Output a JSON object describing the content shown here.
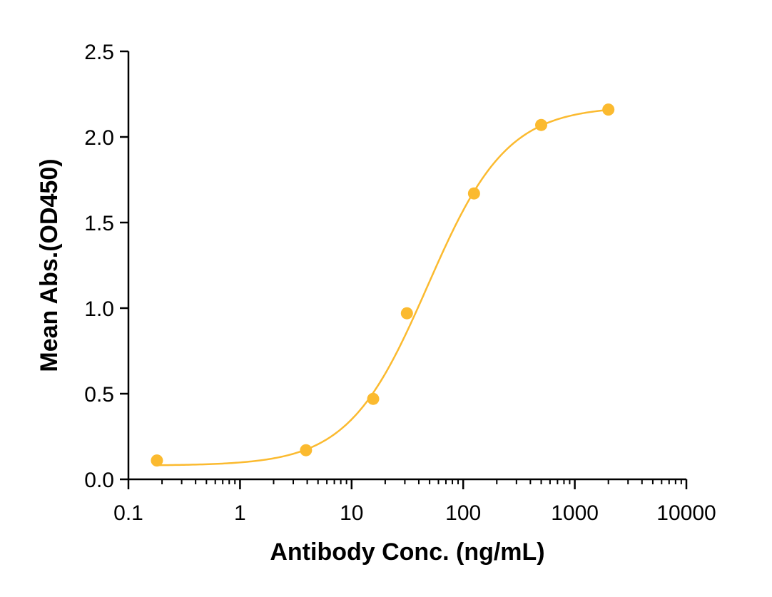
{
  "chart_data": {
    "type": "scatter",
    "title": "",
    "xlabel": "Antibody Conc. (ng/mL)",
    "ylabel": "Mean Abs.(OD450)",
    "xscale": "log",
    "xlim": [
      0.1,
      10000
    ],
    "ylim": [
      0,
      2.5
    ],
    "x_ticks": [
      0.1,
      1,
      10,
      100,
      1000,
      10000
    ],
    "x_tick_labels": [
      "0.1",
      "1",
      "10",
      "100",
      "1000",
      "10000"
    ],
    "y_ticks": [
      0,
      0.5,
      1,
      1.5,
      2,
      2.5
    ],
    "y_tick_labels": [
      "0.0",
      "0.5",
      "1.0",
      "1.5",
      "2.0",
      "2.5"
    ],
    "grid": false,
    "legend": "none",
    "color": "#FBBA2F",
    "series": [
      {
        "x": [
          0.18,
          3.9,
          15.6,
          31.3,
          125,
          500,
          2000
        ],
        "y": [
          0.11,
          0.17,
          0.47,
          0.97,
          1.67,
          2.07,
          2.16
        ],
        "fit": "4PL sigmoid"
      }
    ],
    "fit_params": {
      "bottom": 0.08,
      "top": 2.18,
      "ec50": 48,
      "hill": 1.22
    }
  }
}
